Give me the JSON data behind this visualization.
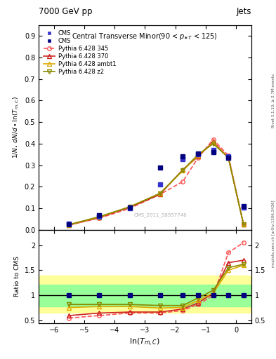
{
  "title_top": "7000 GeV pp",
  "title_right": "Jets",
  "plot_title": "Central Transverse Minor(90 < p_{#tT} < 125)",
  "ylabel_main": "1/N dN/d ln(T_{m,C})",
  "ylabel_ratio": "Ratio to CMS",
  "xlabel": "ln(T_{m,C})",
  "watermark": "CMS_2011_S8957746",
  "right_label": "mcplots.cern.ch [arXiv:1306.3436]",
  "right_label2": "Rivet 3.1.10; ≥ 2.7M events",
  "xlim": [
    -6.5,
    0.5
  ],
  "ylim_main": [
    0.0,
    0.95
  ],
  "ylim_ratio": [
    0.45,
    2.3
  ],
  "x_data": [
    -5.5,
    -4.5,
    -3.5,
    -2.5,
    -1.75,
    -1.25,
    -0.75,
    -0.25,
    0.25
  ],
  "cms_data1": [
    0.03,
    0.063,
    0.1,
    0.21,
    0.33,
    0.35,
    0.37,
    0.34,
    0.105
  ],
  "cms_data2": [
    0.025,
    0.068,
    0.105,
    0.29,
    0.34,
    0.355,
    0.36,
    0.335,
    0.11
  ],
  "pythia345_data": [
    0.023,
    0.055,
    0.1,
    0.165,
    0.225,
    0.335,
    0.42,
    0.345,
    0.025
  ],
  "pythia370_data": [
    0.023,
    0.058,
    0.105,
    0.165,
    0.28,
    0.34,
    0.41,
    0.335,
    0.025
  ],
  "pythia_ambt1_data": [
    0.024,
    0.06,
    0.108,
    0.17,
    0.275,
    0.345,
    0.405,
    0.335,
    0.025
  ],
  "pythia_z2_data": [
    0.025,
    0.062,
    0.107,
    0.17,
    0.278,
    0.35,
    0.4,
    0.335,
    0.025
  ],
  "ratio_345": [
    0.55,
    0.6,
    0.65,
    0.65,
    0.7,
    0.82,
    1.0,
    1.85,
    2.05
  ],
  "ratio_370": [
    0.6,
    0.65,
    0.67,
    0.67,
    0.73,
    0.85,
    1.05,
    1.65,
    1.7
  ],
  "ratio_ambt1": [
    0.76,
    0.78,
    0.78,
    0.75,
    0.76,
    0.9,
    1.05,
    1.5,
    1.6
  ],
  "ratio_z2": [
    0.82,
    0.82,
    0.82,
    0.8,
    0.8,
    0.95,
    1.1,
    1.55,
    1.62
  ],
  "band_yellow_lo": 0.65,
  "band_yellow_hi": 1.4,
  "band_green_lo": 0.78,
  "band_green_hi": 1.22,
  "color_cms1": "#3333cc",
  "color_cms2": "#000080",
  "color_345": "#ff5555",
  "color_370": "#cc2222",
  "color_ambt1": "#ddaa00",
  "color_z2": "#888800",
  "color_yellow": "#ffff99",
  "color_green": "#99ff99"
}
